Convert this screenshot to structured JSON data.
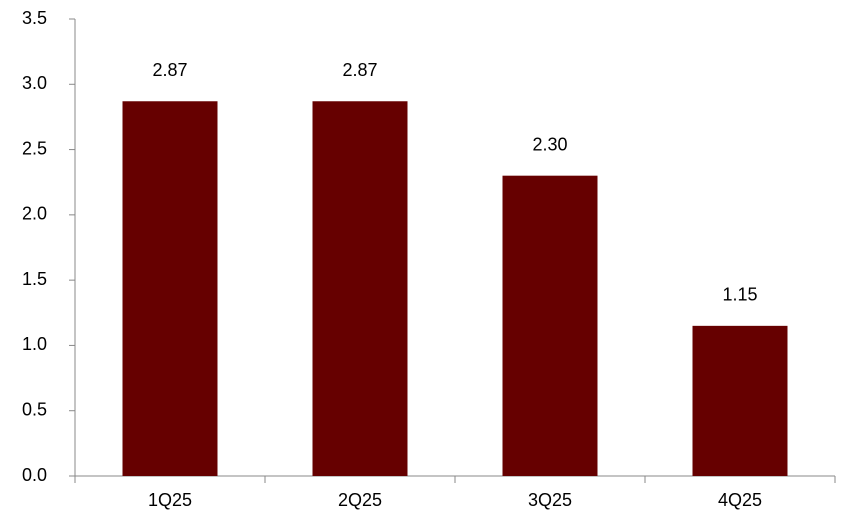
{
  "chart_data": {
    "type": "bar",
    "categories": [
      "1Q25",
      "2Q25",
      "3Q25",
      "4Q25"
    ],
    "values": [
      2.87,
      2.87,
      2.3,
      1.15
    ],
    "value_labels": [
      "2.87",
      "2.87",
      "2.30",
      "1.15"
    ],
    "color": "#660000",
    "ylim": [
      0,
      3.5
    ],
    "yticks": [
      {
        "value": 0,
        "label": "0.0"
      },
      0.5,
      {
        "value": 1,
        "label": "1.0"
      },
      1.5,
      {
        "value": 2,
        "label": "2.0"
      },
      2.5,
      {
        "value": 3,
        "label": "3.0"
      },
      3.5
    ],
    "grid": false
  }
}
